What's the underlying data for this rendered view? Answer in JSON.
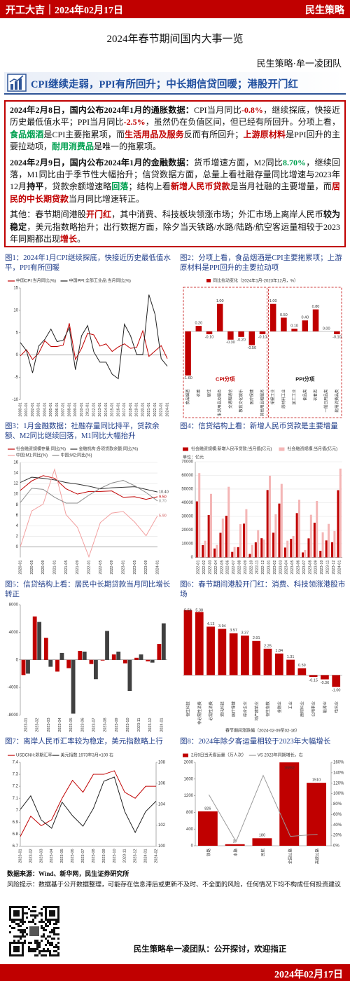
{
  "header": {
    "left": "开工大吉｜2024年02月17日",
    "right": "民生策略"
  },
  "title": "2024年春节期间国内大事一览",
  "team": "民生策略·牟一凌团队",
  "banner": "CPI继续走弱，PPI有所回升；中长期信贷回暖；港股开门红",
  "text": {
    "paragraphs": [
      [
        {
          "t": "2024年2月8日，国内公布2024年1月的通胀数据：",
          "s": "b"
        },
        {
          "t": "CPI当月同比"
        },
        {
          "t": "-0.8%",
          "s": "r"
        },
        {
          "t": "，继续探底，快接近历史最低值水平；PPI当月同比"
        },
        {
          "t": "-2.5%",
          "s": "r"
        },
        {
          "t": "，虽然仍在负值区间，但已经有所回升。分项上看，"
        },
        {
          "t": "食品烟酒",
          "s": "g"
        },
        {
          "t": "是CPI主要拖累项，而"
        },
        {
          "t": "生活用品及服务",
          "s": "r"
        },
        {
          "t": "反而有所回升；"
        },
        {
          "t": "上游原材料",
          "s": "r"
        },
        {
          "t": "是PPI回升的主要拉动项，"
        },
        {
          "t": "耐用消费品",
          "s": "g"
        },
        {
          "t": "是唯一的拖累项。"
        }
      ],
      [
        {
          "t": "2024年2月9日，国内公布2024年1月的金融数据：",
          "s": "b"
        },
        {
          "t": "货币增速方面，M2同比"
        },
        {
          "t": "8.70%",
          "s": "g"
        },
        {
          "t": "，继续回落，M1同比由于季节性大幅抬升；信贷数据方面，总量上看社融存量同比增速与2023年12月"
        },
        {
          "t": "持平",
          "s": "b"
        },
        {
          "t": "，贷款余额增速略"
        },
        {
          "t": "回落",
          "s": "g"
        },
        {
          "t": "；结构上看"
        },
        {
          "t": "新增人民币贷款",
          "s": "r"
        },
        {
          "t": "是当月社融的主要增量，而"
        },
        {
          "t": "居民的中长期贷款",
          "s": "r"
        },
        {
          "t": "当月同比增速转正。"
        }
      ],
      [
        {
          "t": "其他：春节期间港股"
        },
        {
          "t": "开门红",
          "s": "r"
        },
        {
          "t": "，其中消费、科技板块领涨市场；外汇市场上离岸人民币"
        },
        {
          "t": "较为稳定",
          "s": "b"
        },
        {
          "t": "，美元指数略抬升；出行数据方面，除夕当天铁路/水路/陆路/航空客运量相较于2023年同期都出现"
        },
        {
          "t": "增长",
          "s": "r"
        },
        {
          "t": "。"
        }
      ]
    ]
  },
  "chart_data": [
    {
      "type": "line",
      "title": "图1：2024年1月CPI继续探底，快接近历史最低值水平，PPI有所回暖",
      "categories": [
        "2000-01",
        "2001-01",
        "2002-01",
        "2003-01",
        "2004-01",
        "2005-01",
        "2006-01",
        "2007-01",
        "2008-01",
        "2009-01",
        "2010-01",
        "2011-01",
        "2012-01",
        "2013-01",
        "2014-01",
        "2015-01",
        "2016-01",
        "2017-01",
        "2018-01",
        "2019-01",
        "2020-01",
        "2021-01",
        "2022-01",
        "2023-01",
        "2024-01"
      ],
      "series": [
        {
          "name": "中国CPI:当月同比(%)",
          "color": "#c00000",
          "values": [
            -0.2,
            1.2,
            -1.0,
            0.4,
            3.2,
            1.9,
            1.9,
            2.2,
            7.1,
            -1.0,
            1.5,
            4.9,
            4.5,
            2.0,
            2.5,
            0.8,
            1.8,
            2.5,
            1.5,
            1.7,
            5.4,
            -0.3,
            0.9,
            2.1,
            -0.8
          ]
        },
        {
          "name": "中国PPI:全部工业品:当月同比(%)",
          "color": "#222222",
          "values": [
            2.8,
            1.0,
            -4.0,
            2.0,
            3.5,
            5.8,
            3.0,
            3.3,
            6.1,
            -3.3,
            4.3,
            6.6,
            0.7,
            -1.6,
            -1.6,
            -4.3,
            -5.3,
            6.9,
            4.3,
            0.1,
            0.1,
            13.5,
            9.1,
            -0.8,
            -2.5
          ]
        }
      ],
      "ylim": [
        -10,
        15
      ],
      "yticks": [
        -10,
        -5,
        0,
        5,
        10,
        15
      ],
      "grid": false
    },
    {
      "type": "group_bar",
      "title": "图2：分项上看，食品烟酒是CPI主要拖累项；上游原材料是PPI回升的主要拉动项",
      "legend": "同比拉动变化（2024年1月-2023年12月，%）",
      "color": "#c00000",
      "ylim": [
        -2,
        1.4
      ],
      "groups": [
        {
          "label": "CPI分项",
          "color": "#c00000",
          "categories": [
            "食品烟酒",
            "衣着",
            "居住",
            "生活用品及服务",
            "交通和通信",
            "教育文化娱乐",
            "医疗保健",
            "其他用品和服务"
          ],
          "values": [
            -1.6,
            0.2,
            -0.1,
            1.0,
            -0.3,
            -0.2,
            -0.5,
            -0.1
          ],
          "value_labels": [
            "-1.60",
            "0.20",
            "-0.10",
            "1.00",
            "-0.30",
            "-0.20",
            "-0.50",
            "-0.10"
          ]
        },
        {
          "label": "PPI分项",
          "color": "#222222",
          "categories": [
            "采掘工业",
            "原材料工业",
            "加工工业",
            "食品类",
            "衣着类",
            "一般日用品类",
            "耐用消费品类"
          ],
          "values": [
            1.0,
            0.5,
            0.1,
            0.4,
            0.8,
            0.0,
            -0.1
          ],
          "value_labels": [
            "1.00",
            "0.50",
            "0.10",
            "0.40",
            "0.80",
            "0.00",
            "-0.10"
          ]
        }
      ]
    },
    {
      "type": "line",
      "title": "图3：1月金融数据：社融存量同比持平，贷款余额、M2同比继续回落，M1同比大幅抬升",
      "categories": [
        "2020-01",
        "2020-05",
        "2020-09",
        "2021-01",
        "2021-05",
        "2021-09",
        "2022-01",
        "2022-05",
        "2022-09",
        "2023-01",
        "2023-05",
        "2023-09",
        "2024-01"
      ],
      "series": [
        {
          "name": "社会融资规模存量:同比(%)",
          "color": "#c00000",
          "values": [
            10.7,
            12.5,
            13.5,
            13.0,
            11.0,
            10.0,
            10.5,
            10.5,
            10.6,
            9.4,
            9.5,
            9.0,
            9.5
          ],
          "end_label": "9.50"
        },
        {
          "name": "金融机构:各项贷款余额:同比(%)",
          "color": "#333333",
          "values": [
            12.2,
            13.2,
            13.0,
            12.7,
            12.2,
            11.9,
            11.5,
            11.0,
            11.2,
            11.3,
            11.4,
            10.9,
            10.4
          ],
          "end_label": "10.40"
        },
        {
          "name": "中国:M1:同比(%)",
          "color": "#f2a0a0",
          "values": [
            0.0,
            6.8,
            8.1,
            14.7,
            6.1,
            3.7,
            -1.9,
            4.6,
            6.4,
            6.7,
            4.7,
            2.1,
            5.9
          ],
          "end_label": "5.90"
        },
        {
          "name": "中国:M2:同比(%)",
          "color": "#8c8c8c",
          "values": [
            8.4,
            11.1,
            10.9,
            9.4,
            8.3,
            8.3,
            9.8,
            11.1,
            12.1,
            12.6,
            11.6,
            10.3,
            8.7
          ],
          "end_label": "8.70"
        }
      ],
      "ylim": [
        -2,
        16
      ],
      "yticks": [
        0,
        2,
        4,
        6,
        8,
        10,
        12,
        14,
        16
      ],
      "grid": true
    },
    {
      "type": "bar",
      "title": "图4：信贷结构上看：新增人民币贷款是主要增量",
      "unit": "单位：亿元",
      "categories": [
        "2022-01",
        "2022-02",
        "2022-03",
        "2022-04",
        "2022-05",
        "2022-06",
        "2022-07",
        "2022-08",
        "2022-09",
        "2022-10",
        "2022-11",
        "2022-12",
        "2023-01",
        "2023-02",
        "2023-03",
        "2023-04",
        "2023-05",
        "2023-06",
        "2023-07",
        "2023-08",
        "2023-09",
        "2023-10",
        "2023-11",
        "2023-12",
        "2024-01"
      ],
      "series": [
        {
          "name": "社会融资规模:新增人民币贷款:当月值(亿元)",
          "color": "#c00000",
          "values": [
            41000,
            9000,
            31000,
            6500,
            18000,
            30500,
            4000,
            7500,
            24700,
            2500,
            11000,
            14000,
            49300,
            18100,
            39400,
            7200,
            13600,
            32400,
            3600,
            13900,
            25400,
            4800,
            12400,
            11100,
            49200
          ]
        },
        {
          "name": "社会融资规模:当月值(亿元)",
          "color": "#f4b6b6",
          "values": [
            61700,
            12200,
            46500,
            9100,
            28400,
            51700,
            7600,
            24300,
            35300,
            9100,
            19900,
            13100,
            59800,
            31600,
            53800,
            12200,
            15600,
            42200,
            5400,
            31200,
            41300,
            18400,
            24500,
            19300,
            65000
          ]
        }
      ],
      "ylim": [
        0,
        70000
      ],
      "yticks": [
        0,
        10000,
        20000,
        30000,
        40000,
        50000,
        60000,
        70000
      ],
      "grid": true
    },
    {
      "type": "bar",
      "title": "图5：信贷结构上看：居民中长期贷款当月同比增长转正",
      "categories": [
        "2023-01",
        "2023-02",
        "2023-03",
        "2023-04",
        "2023-05",
        "2023-06",
        "2023-07",
        "2023-08",
        "2023-09",
        "2023-10",
        "2023-11",
        "2023-12",
        "2024-01"
      ],
      "series": [
        {
          "color": "#c00000",
          "values": [
            -2200,
            6300,
            3200,
            -1700,
            -1200,
            1300,
            -600,
            -100,
            800,
            -500,
            300,
            -200,
            2300
          ]
        },
        {
          "color": "#404040",
          "values": [
            -2000,
            5500,
            -1000,
            1000,
            -7800,
            1200,
            -2800,
            4200,
            1200,
            -4500,
            800,
            -400,
            5300
          ]
        }
      ],
      "ylim": [
        -8000,
        8000
      ],
      "yticks": [
        -8000,
        -4000,
        0,
        4000,
        8000
      ],
      "grid": false
    },
    {
      "type": "bar",
      "title": "图6：春节期间港股开门红：消费、科技领涨港股市场",
      "categories": [
        "恒生科技",
        "非必需性消费",
        "必需性消费",
        "资讯科技",
        "医疗保健",
        "综合企业",
        "地产建筑业",
        "恒生指数",
        "金融业",
        "工业",
        "原材料业",
        "公用事业",
        "能源业",
        "电讯业"
      ],
      "series": [
        {
          "color": "#c00000",
          "values": [
            5.54,
            5.38,
            4.13,
            3.94,
            3.57,
            3.37,
            2.91,
            2.25,
            1.84,
            1.31,
            0.59,
            -0.15,
            -0.36,
            -1.0
          ],
          "value_labels": [
            "5.54",
            "5.38",
            "4.13",
            "3.94",
            "3.57",
            "3.37",
            "2.91",
            "2.25",
            "1.84",
            "1.31",
            "0.59",
            "-0.15",
            "-0.36",
            "-1.00"
          ]
        }
      ],
      "ylim": [
        -2,
        6
      ],
      "xlabel": "春节期间涨跌幅（2024-02-09至02-16）"
    },
    {
      "type": "line",
      "title": "图7：离岸人民币汇率较为稳定，美元指数略上行",
      "categories": [
        "2023-01",
        "2023-02",
        "2023-03",
        "2023-04",
        "2023-05",
        "2023-06",
        "2023-07",
        "2023-08",
        "2023-09",
        "2023-10",
        "2023-11",
        "2023-12",
        "2024-01",
        "2024-02"
      ],
      "series": [
        {
          "name": "USDCNH:即期汇率",
          "color": "#c00000",
          "values": [
            6.78,
            6.95,
            6.87,
            6.92,
            7.1,
            7.25,
            7.15,
            7.3,
            7.3,
            7.33,
            7.15,
            7.1,
            7.2,
            7.2
          ]
        },
        {
          "name": "美元指数 1973年3月=100 右",
          "color": "#222222",
          "axis": "y2",
          "values": [
            103.5,
            104.8,
            102.5,
            101.7,
            104.2,
            102.9,
            101.9,
            103.6,
            106.2,
            106.6,
            103.3,
            101.3,
            103.3,
            104.3
          ]
        }
      ],
      "ylim": [
        6.7,
        7.4
      ],
      "yticks": [
        6.7,
        6.8,
        6.9,
        7.0,
        7.1,
        7.2,
        7.3,
        7.4
      ],
      "y2lim": [
        100,
        108
      ],
      "y2ticks": [
        100,
        102,
        104,
        106,
        108
      ],
      "grid": false
    },
    {
      "type": "combo",
      "title": "图8：2024年除夕客运量相较于2023年大幅增长",
      "categories": [
        "铁路",
        "水路",
        "民航",
        "全国公路",
        "高速公路"
      ],
      "series": [
        {
          "name": "2月9日当天客运量（万人次）",
          "color": "#c00000",
          "values": [
            826,
            37,
            180,
            16852,
            1510
          ],
          "value_labels": [
            "826",
            "37",
            "180",
            "16852",
            "1510"
          ]
        },
        {
          "name": "VS 2023年同期增长，右",
          "color": "#9a9a9a",
          "axis": "y2",
          "values": [
            98,
            8,
            135,
            18,
            22
          ]
        }
      ],
      "ylim": [
        0,
        2000
      ],
      "yticks": [
        0,
        400,
        800,
        1200,
        1600,
        2000
      ],
      "y2lim": [
        0,
        160
      ],
      "y2ticks": [
        {
          "value": 0,
          "label": "0%"
        },
        {
          "value": 20,
          "label": "20%"
        },
        {
          "value": 40,
          "label": "40%"
        },
        {
          "value": 60,
          "label": "60%"
        },
        {
          "value": 80,
          "label": "80%"
        },
        {
          "value": 100,
          "label": "100%"
        },
        {
          "value": 120,
          "label": "120%"
        },
        {
          "value": 140,
          "label": "140%"
        },
        {
          "value": 160,
          "label": "160%"
        }
      ],
      "grid": false
    }
  ],
  "source": "数据来源：Wind、新华网，民生证券研究所",
  "risk": "风险提示：数据基于公开数据整理，可能存在信息滞后或更新不及时、不全面的风险，任何情况下均不构成任何投资建议",
  "footer": {
    "slogan": "民生策略牟一凌团队：公开探讨，欢迎指正",
    "date": "2024年02月17日"
  }
}
